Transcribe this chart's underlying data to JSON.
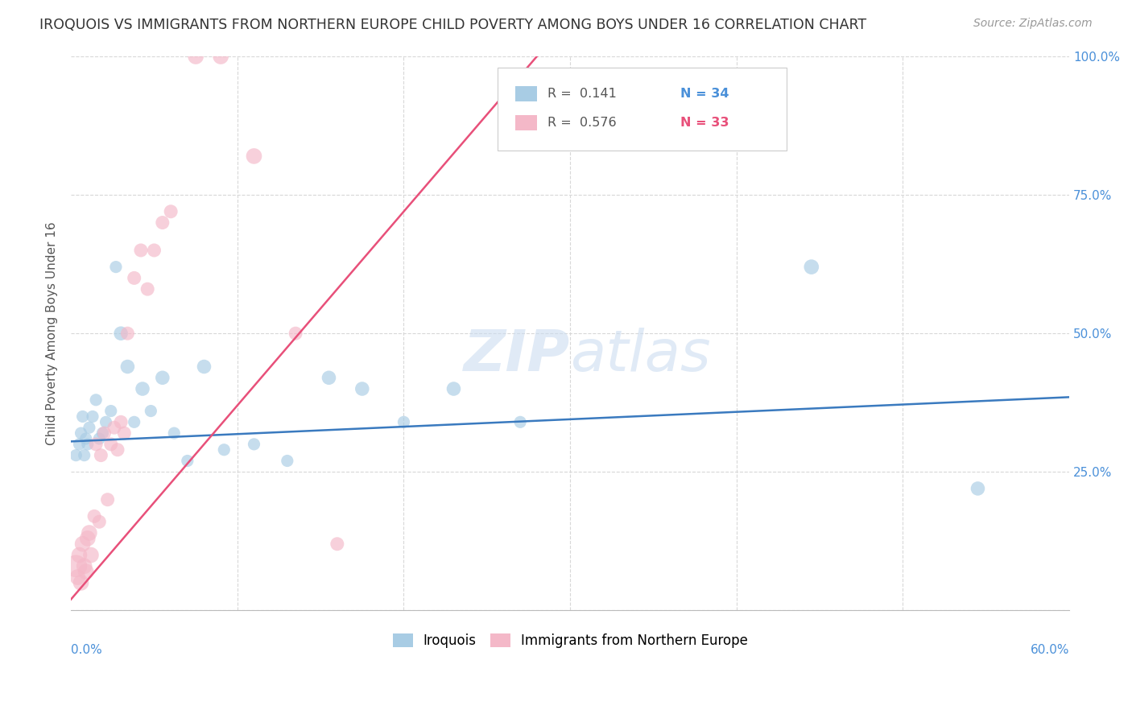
{
  "title": "IROQUOIS VS IMMIGRANTS FROM NORTHERN EUROPE CHILD POVERTY AMONG BOYS UNDER 16 CORRELATION CHART",
  "source": "Source: ZipAtlas.com",
  "ylabel": "Child Poverty Among Boys Under 16",
  "yticks": [
    0.0,
    0.25,
    0.5,
    0.75,
    1.0
  ],
  "ytick_labels_right": [
    "",
    "25.0%",
    "50.0%",
    "75.0%",
    "100.0%"
  ],
  "xmin": 0.0,
  "xmax": 0.6,
  "ymin": 0.0,
  "ymax": 1.0,
  "legend_R1": "R =  0.141",
  "legend_N1": "N = 34",
  "legend_R2": "R =  0.576",
  "legend_N2": "N = 33",
  "color_blue": "#a8cce4",
  "color_pink": "#f4b8c8",
  "color_blue_dark": "#4a90d9",
  "color_pink_dark": "#e8607a",
  "color_blue_line": "#3a7abf",
  "color_pink_line": "#e8507a",
  "color_blue_text": "#4a90d9",
  "color_pink_text": "#e8507a",
  "watermark_zip": "ZIP",
  "watermark_atlas": "atlas",
  "blue_line_x0": 0.0,
  "blue_line_y0": 0.305,
  "blue_line_x1": 0.6,
  "blue_line_y1": 0.385,
  "pink_line_x0": 0.0,
  "pink_line_y0": 0.02,
  "pink_line_x1": 0.28,
  "pink_line_y1": 1.0,
  "iroquois_x": [
    0.003,
    0.005,
    0.006,
    0.007,
    0.008,
    0.009,
    0.01,
    0.011,
    0.013,
    0.015,
    0.017,
    0.019,
    0.021,
    0.024,
    0.027,
    0.03,
    0.034,
    0.038,
    0.043,
    0.048,
    0.055,
    0.062,
    0.07,
    0.08,
    0.092,
    0.11,
    0.13,
    0.155,
    0.175,
    0.2,
    0.23,
    0.27,
    0.445,
    0.545
  ],
  "iroquois_y": [
    0.28,
    0.3,
    0.32,
    0.35,
    0.28,
    0.31,
    0.3,
    0.33,
    0.35,
    0.38,
    0.31,
    0.32,
    0.34,
    0.36,
    0.62,
    0.5,
    0.44,
    0.34,
    0.4,
    0.36,
    0.42,
    0.32,
    0.27,
    0.44,
    0.29,
    0.3,
    0.27,
    0.42,
    0.4,
    0.34,
    0.4,
    0.34,
    0.62,
    0.22
  ],
  "immigrants_x": [
    0.003,
    0.004,
    0.005,
    0.006,
    0.007,
    0.008,
    0.009,
    0.01,
    0.011,
    0.012,
    0.014,
    0.015,
    0.017,
    0.018,
    0.02,
    0.022,
    0.024,
    0.026,
    0.028,
    0.03,
    0.032,
    0.034,
    0.038,
    0.042,
    0.046,
    0.05,
    0.055,
    0.06,
    0.075,
    0.09,
    0.11,
    0.135,
    0.16
  ],
  "immigrants_y": [
    0.08,
    0.06,
    0.1,
    0.05,
    0.12,
    0.08,
    0.07,
    0.13,
    0.14,
    0.1,
    0.17,
    0.3,
    0.16,
    0.28,
    0.32,
    0.2,
    0.3,
    0.33,
    0.29,
    0.34,
    0.32,
    0.5,
    0.6,
    0.65,
    0.58,
    0.65,
    0.7,
    0.72,
    1.0,
    1.0,
    0.82,
    0.5,
    0.12
  ],
  "iroquois_sizes": [
    120,
    120,
    120,
    120,
    120,
    120,
    120,
    120,
    120,
    120,
    120,
    120,
    120,
    120,
    120,
    160,
    160,
    120,
    160,
    120,
    160,
    120,
    120,
    160,
    120,
    120,
    120,
    160,
    160,
    120,
    160,
    120,
    180,
    160
  ],
  "immigrants_sizes": [
    400,
    200,
    200,
    200,
    200,
    200,
    200,
    200,
    200,
    200,
    150,
    150,
    150,
    150,
    150,
    150,
    150,
    150,
    150,
    150,
    150,
    150,
    150,
    150,
    150,
    150,
    150,
    150,
    200,
    200,
    200,
    150,
    150
  ]
}
